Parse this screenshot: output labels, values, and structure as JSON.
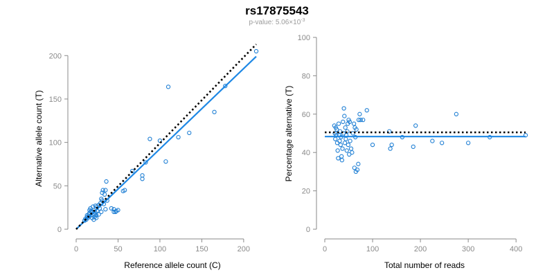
{
  "figure": {
    "title": "rs17875543",
    "subtitle_prefix": "p-value: 5.06×10",
    "subtitle_exponent": "-3",
    "point_color": "#1f7fd4",
    "fit_color": "#1e88e5",
    "expected_color": "#000000"
  },
  "chart_data": [
    {
      "type": "scatter",
      "name": "counts",
      "xlabel": "Reference allele count (C)",
      "ylabel": "Alternative allele count (T)",
      "xlim": [
        0,
        215
      ],
      "ylim": [
        0,
        205
      ],
      "xticks": [
        0,
        50,
        100,
        150,
        200
      ],
      "yticks": [
        0,
        50,
        100,
        150,
        200
      ],
      "grid": false,
      "points": [
        [
          10,
          10
        ],
        [
          11,
          12
        ],
        [
          12,
          11
        ],
        [
          13,
          14
        ],
        [
          13,
          16
        ],
        [
          14,
          13
        ],
        [
          15,
          17
        ],
        [
          15,
          15
        ],
        [
          16,
          19
        ],
        [
          16,
          22
        ],
        [
          17,
          24
        ],
        [
          18,
          21
        ],
        [
          18,
          16
        ],
        [
          19,
          13
        ],
        [
          20,
          20
        ],
        [
          20,
          26
        ],
        [
          21,
          22
        ],
        [
          21,
          11
        ],
        [
          22,
          17
        ],
        [
          22,
          14
        ],
        [
          23,
          27
        ],
        [
          23,
          19
        ],
        [
          24,
          16
        ],
        [
          24,
          13
        ],
        [
          25,
          21
        ],
        [
          25,
          26
        ],
        [
          27,
          28
        ],
        [
          27,
          17
        ],
        [
          28,
          24
        ],
        [
          29,
          30
        ],
        [
          30,
          20
        ],
        [
          30,
          35
        ],
        [
          31,
          42
        ],
        [
          31,
          33
        ],
        [
          32,
          45
        ],
        [
          33,
          29
        ],
        [
          34,
          40
        ],
        [
          35,
          23
        ],
        [
          35,
          45
        ],
        [
          36,
          55
        ],
        [
          37,
          33
        ],
        [
          42,
          24
        ],
        [
          45,
          20
        ],
        [
          45,
          23
        ],
        [
          47,
          20
        ],
        [
          48,
          21
        ],
        [
          50,
          22
        ],
        [
          56,
          44
        ],
        [
          58,
          45
        ],
        [
          67,
          67
        ],
        [
          79,
          62
        ],
        [
          79,
          58
        ],
        [
          83,
          77
        ],
        [
          88,
          104
        ],
        [
          100,
          102
        ],
        [
          107,
          78
        ],
        [
          110,
          164
        ],
        [
          122,
          106
        ],
        [
          135,
          111
        ],
        [
          165,
          135
        ],
        [
          178,
          165
        ],
        [
          215,
          205
        ]
      ],
      "expected_line": [
        [
          0,
          0
        ],
        [
          215,
          213
        ]
      ],
      "fit_line": [
        [
          0,
          0
        ],
        [
          215,
          199
        ]
      ]
    },
    {
      "type": "scatter",
      "name": "percentage",
      "xlabel": "Total number of reads",
      "ylabel": "Percentage alternative (T)",
      "xlim": [
        0,
        420
      ],
      "ylim": [
        0,
        100
      ],
      "xticks": [
        0,
        100,
        200,
        300,
        400
      ],
      "yticks": [
        0,
        20,
        40,
        60,
        80,
        100
      ],
      "grid": false,
      "points": [
        [
          20,
          54
        ],
        [
          21,
          50
        ],
        [
          22,
          47
        ],
        [
          23,
          53
        ],
        [
          24,
          49
        ],
        [
          25,
          52
        ],
        [
          26,
          45
        ],
        [
          27,
          41
        ],
        [
          28,
          37
        ],
        [
          29,
          55
        ],
        [
          30,
          49
        ],
        [
          31,
          46
        ],
        [
          32,
          51
        ],
        [
          33,
          44
        ],
        [
          34,
          48
        ],
        [
          35,
          38
        ],
        [
          36,
          36
        ],
        [
          37,
          42
        ],
        [
          38,
          56
        ],
        [
          39,
          50
        ],
        [
          40,
          63
        ],
        [
          41,
          59
        ],
        [
          42,
          45
        ],
        [
          43,
          53
        ],
        [
          44,
          47
        ],
        [
          45,
          49
        ],
        [
          46,
          41
        ],
        [
          47,
          51
        ],
        [
          48,
          55
        ],
        [
          49,
          44
        ],
        [
          50,
          57
        ],
        [
          51,
          39
        ],
        [
          52,
          56
        ],
        [
          53,
          46
        ],
        [
          55,
          42
        ],
        [
          57,
          40
        ],
        [
          59,
          50
        ],
        [
          61,
          55
        ],
        [
          62,
          32
        ],
        [
          63,
          53
        ],
        [
          64,
          48
        ],
        [
          65,
          30
        ],
        [
          66,
          52
        ],
        [
          68,
          31
        ],
        [
          70,
          34
        ],
        [
          71,
          57
        ],
        [
          73,
          60
        ],
        [
          75,
          57
        ],
        [
          80,
          57
        ],
        [
          88,
          62
        ],
        [
          100,
          44
        ],
        [
          135,
          51
        ],
        [
          137,
          42
        ],
        [
          140,
          44
        ],
        [
          162,
          48
        ],
        [
          185,
          43
        ],
        [
          190,
          54
        ],
        [
          225,
          46
        ],
        [
          245,
          45
        ],
        [
          275,
          60
        ],
        [
          300,
          45
        ],
        [
          345,
          48
        ],
        [
          420,
          49
        ]
      ],
      "expected_line": [
        [
          0,
          50.5
        ],
        [
          420,
          50.5
        ]
      ],
      "fit_line": [
        [
          0,
          48.3
        ],
        [
          420,
          48.3
        ]
      ]
    }
  ]
}
